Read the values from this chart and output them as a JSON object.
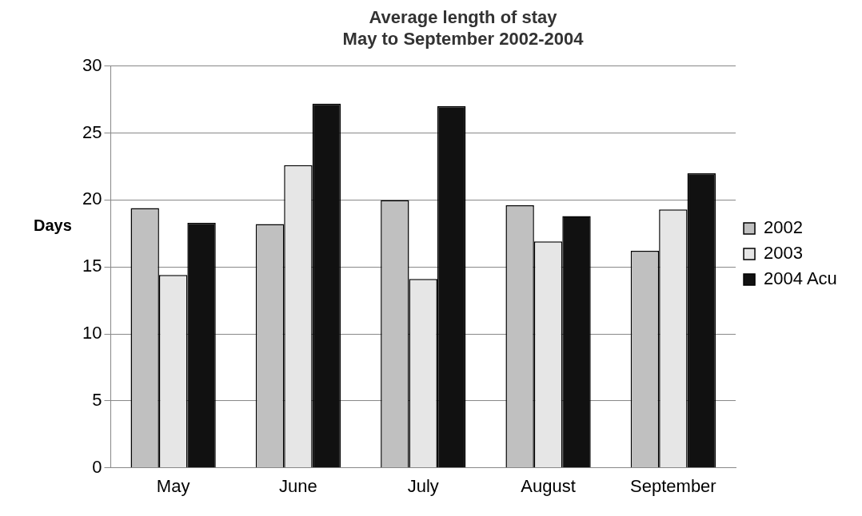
{
  "chart_data": {
    "type": "bar",
    "title": [
      "Average length of stay",
      "May to September 2002-2004"
    ],
    "ylabel": "Days",
    "categories": [
      "May",
      "June",
      "July",
      "August",
      "September"
    ],
    "series": [
      {
        "name": "2002",
        "color": "#c0c0c0",
        "values": [
          19.4,
          18.2,
          20.0,
          19.6,
          16.2
        ]
      },
      {
        "name": "2003",
        "color": "#e6e6e6",
        "values": [
          14.4,
          22.6,
          14.1,
          16.9,
          19.3
        ]
      },
      {
        "name": "2004 Acu",
        "color": "#111111",
        "values": [
          18.3,
          27.2,
          27.0,
          18.8,
          22.0
        ]
      }
    ],
    "ylim": [
      0,
      30
    ],
    "yticks": [
      0,
      5,
      10,
      15,
      20,
      25,
      30
    ],
    "grid": "y",
    "legend": "right"
  }
}
